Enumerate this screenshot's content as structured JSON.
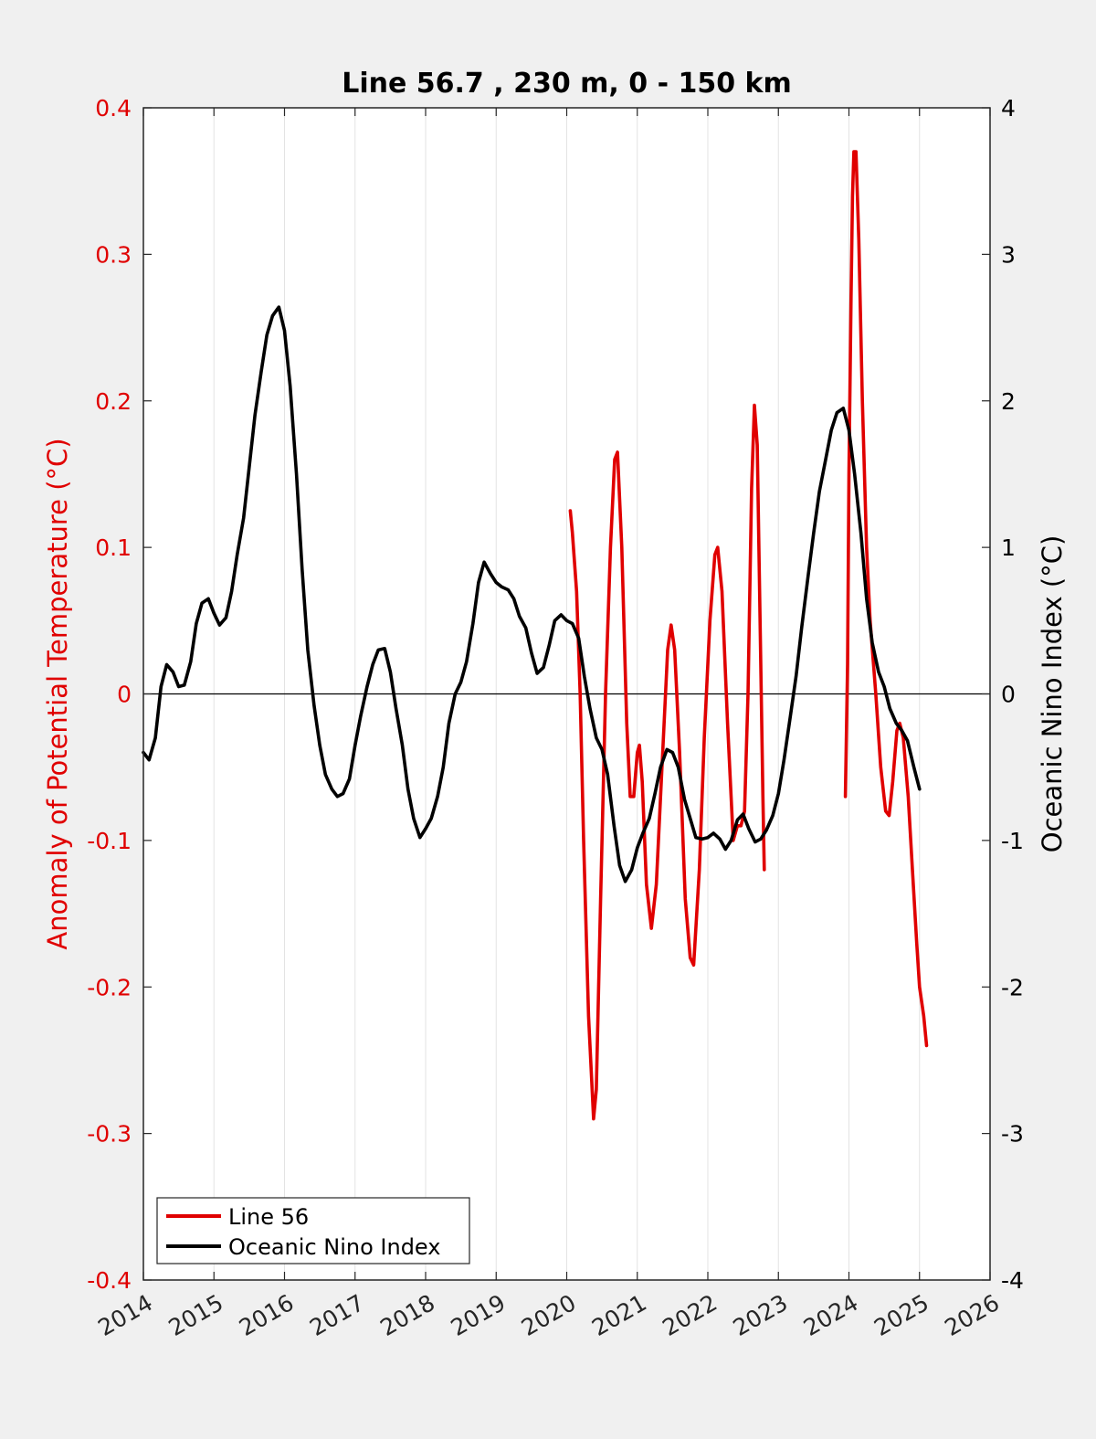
{
  "chart_data": {
    "type": "line",
    "title": "Line 56.7 , 230 m, 0 - 150 km",
    "xlim": [
      2014,
      2026
    ],
    "x_ticks": [
      "2014",
      "2015",
      "2016",
      "2017",
      "2018",
      "2019",
      "2020",
      "2021",
      "2022",
      "2023",
      "2024",
      "2025",
      "2026"
    ],
    "y_left": {
      "label": "Anomaly of Potential Temperature (°C)",
      "lim": [
        -0.4,
        0.4
      ],
      "ticks": [
        "-0.4",
        "-0.3",
        "-0.2",
        "-0.1",
        "0",
        "0.1",
        "0.2",
        "0.3",
        "0.4"
      ],
      "color": "#e00000"
    },
    "y_right": {
      "label": "Oceanic Nino Index (°C)",
      "lim": [
        -4,
        4
      ],
      "ticks": [
        "-4",
        "-3",
        "-2",
        "-1",
        "0",
        "1",
        "2",
        "3",
        "4"
      ],
      "color": "#000000"
    },
    "grid": "vertical",
    "legend_position": "bottom-left",
    "series": [
      {
        "name": "Line 56",
        "axis": "left",
        "color": "#e00000",
        "points": [
          [
            2020.05,
            0.125
          ],
          [
            2020.08,
            0.11
          ],
          [
            2020.14,
            0.07
          ],
          [
            2020.19,
            0.0
          ],
          [
            2020.24,
            -0.1
          ],
          [
            2020.31,
            -0.22
          ],
          [
            2020.38,
            -0.29
          ],
          [
            2020.42,
            -0.27
          ],
          [
            2020.48,
            -0.14
          ],
          [
            2020.55,
            0.0
          ],
          [
            2020.62,
            0.1
          ],
          [
            2020.68,
            0.16
          ],
          [
            2020.72,
            0.165
          ],
          [
            2020.78,
            0.1
          ],
          [
            2020.85,
            -0.02
          ],
          [
            2020.9,
            -0.07
          ],
          [
            2020.95,
            -0.07
          ],
          [
            2021.0,
            -0.04
          ],
          [
            2021.03,
            -0.035
          ],
          [
            2021.07,
            -0.06
          ],
          [
            2021.13,
            -0.13
          ],
          [
            2021.2,
            -0.16
          ],
          [
            2021.27,
            -0.13
          ],
          [
            2021.35,
            -0.05
          ],
          [
            2021.43,
            0.03
          ],
          [
            2021.48,
            0.047
          ],
          [
            2021.53,
            0.03
          ],
          [
            2021.6,
            -0.04
          ],
          [
            2021.68,
            -0.14
          ],
          [
            2021.75,
            -0.18
          ],
          [
            2021.8,
            -0.185
          ],
          [
            2021.88,
            -0.12
          ],
          [
            2021.95,
            -0.03
          ],
          [
            2022.03,
            0.05
          ],
          [
            2022.1,
            0.095
          ],
          [
            2022.14,
            0.1
          ],
          [
            2022.2,
            0.07
          ],
          [
            2022.28,
            -0.02
          ],
          [
            2022.36,
            -0.1
          ],
          [
            2022.42,
            -0.09
          ],
          [
            2022.47,
            -0.09
          ],
          [
            2022.52,
            -0.08
          ],
          [
            2022.57,
            0.0
          ],
          [
            2022.62,
            0.14
          ],
          [
            2022.66,
            0.197
          ],
          [
            2022.7,
            0.17
          ],
          [
            2022.74,
            0.05
          ],
          [
            2022.78,
            -0.07
          ],
          [
            2022.8,
            -0.12
          ]
        ],
        "segments": [
          [
            [
              2023.95,
              -0.07
            ],
            [
              2023.98,
              0.02
            ],
            [
              2024.0,
              0.15
            ],
            [
              2024.03,
              0.27
            ],
            [
              2024.05,
              0.34
            ],
            [
              2024.07,
              0.37
            ],
            [
              2024.1,
              0.37
            ],
            [
              2024.14,
              0.31
            ],
            [
              2024.19,
              0.2
            ],
            [
              2024.25,
              0.1
            ],
            [
              2024.3,
              0.05
            ],
            [
              2024.38,
              0.0
            ],
            [
              2024.45,
              -0.05
            ],
            [
              2024.52,
              -0.08
            ],
            [
              2024.57,
              -0.083
            ],
            [
              2024.62,
              -0.06
            ],
            [
              2024.68,
              -0.025
            ],
            [
              2024.72,
              -0.02
            ],
            [
              2024.77,
              -0.03
            ],
            [
              2024.84,
              -0.07
            ],
            [
              2024.9,
              -0.12
            ],
            [
              2024.96,
              -0.17
            ],
            [
              2025.0,
              -0.2
            ],
            [
              2025.06,
              -0.22
            ],
            [
              2025.1,
              -0.24
            ]
          ]
        ]
      },
      {
        "name": "Oceanic Nino Index",
        "axis": "right",
        "color": "#000000",
        "points": [
          [
            2014.0,
            -0.4
          ],
          [
            2014.08,
            -0.45
          ],
          [
            2014.17,
            -0.3
          ],
          [
            2014.25,
            0.05
          ],
          [
            2014.33,
            0.2
          ],
          [
            2014.42,
            0.15
          ],
          [
            2014.5,
            0.05
          ],
          [
            2014.58,
            0.06
          ],
          [
            2014.67,
            0.22
          ],
          [
            2014.75,
            0.48
          ],
          [
            2014.83,
            0.62
          ],
          [
            2014.92,
            0.65
          ],
          [
            2015.0,
            0.55
          ],
          [
            2015.08,
            0.47
          ],
          [
            2015.17,
            0.52
          ],
          [
            2015.25,
            0.7
          ],
          [
            2015.33,
            0.95
          ],
          [
            2015.42,
            1.2
          ],
          [
            2015.5,
            1.55
          ],
          [
            2015.58,
            1.9
          ],
          [
            2015.67,
            2.2
          ],
          [
            2015.75,
            2.45
          ],
          [
            2015.83,
            2.58
          ],
          [
            2015.92,
            2.64
          ],
          [
            2016.0,
            2.48
          ],
          [
            2016.08,
            2.1
          ],
          [
            2016.17,
            1.5
          ],
          [
            2016.25,
            0.85
          ],
          [
            2016.33,
            0.3
          ],
          [
            2016.42,
            -0.08
          ],
          [
            2016.5,
            -0.35
          ],
          [
            2016.58,
            -0.55
          ],
          [
            2016.67,
            -0.65
          ],
          [
            2016.75,
            -0.7
          ],
          [
            2016.83,
            -0.68
          ],
          [
            2016.92,
            -0.58
          ],
          [
            2017.0,
            -0.35
          ],
          [
            2017.08,
            -0.15
          ],
          [
            2017.17,
            0.05
          ],
          [
            2017.25,
            0.2
          ],
          [
            2017.33,
            0.3
          ],
          [
            2017.42,
            0.31
          ],
          [
            2017.5,
            0.15
          ],
          [
            2017.58,
            -0.1
          ],
          [
            2017.67,
            -0.35
          ],
          [
            2017.75,
            -0.65
          ],
          [
            2017.83,
            -0.85
          ],
          [
            2017.92,
            -0.98
          ],
          [
            2018.0,
            -0.92
          ],
          [
            2018.08,
            -0.85
          ],
          [
            2018.17,
            -0.7
          ],
          [
            2018.25,
            -0.5
          ],
          [
            2018.33,
            -0.2
          ],
          [
            2018.42,
            0.0
          ],
          [
            2018.5,
            0.08
          ],
          [
            2018.58,
            0.22
          ],
          [
            2018.67,
            0.48
          ],
          [
            2018.75,
            0.76
          ],
          [
            2018.83,
            0.9
          ],
          [
            2018.92,
            0.82
          ],
          [
            2019.0,
            0.76
          ],
          [
            2019.08,
            0.73
          ],
          [
            2019.17,
            0.71
          ],
          [
            2019.25,
            0.65
          ],
          [
            2019.33,
            0.53
          ],
          [
            2019.42,
            0.45
          ],
          [
            2019.5,
            0.28
          ],
          [
            2019.58,
            0.14
          ],
          [
            2019.67,
            0.18
          ],
          [
            2019.75,
            0.33
          ],
          [
            2019.83,
            0.5
          ],
          [
            2019.92,
            0.54
          ],
          [
            2020.0,
            0.5
          ],
          [
            2020.08,
            0.48
          ],
          [
            2020.17,
            0.38
          ],
          [
            2020.25,
            0.12
          ],
          [
            2020.33,
            -0.1
          ],
          [
            2020.42,
            -0.3
          ],
          [
            2020.5,
            -0.38
          ],
          [
            2020.58,
            -0.55
          ],
          [
            2020.67,
            -0.9
          ],
          [
            2020.75,
            -1.17
          ],
          [
            2020.83,
            -1.28
          ],
          [
            2020.92,
            -1.2
          ],
          [
            2021.0,
            -1.05
          ],
          [
            2021.08,
            -0.95
          ],
          [
            2021.17,
            -0.85
          ],
          [
            2021.25,
            -0.68
          ],
          [
            2021.33,
            -0.5
          ],
          [
            2021.42,
            -0.38
          ],
          [
            2021.5,
            -0.4
          ],
          [
            2021.58,
            -0.5
          ],
          [
            2021.67,
            -0.72
          ],
          [
            2021.75,
            -0.85
          ],
          [
            2021.83,
            -0.98
          ],
          [
            2021.92,
            -0.99
          ],
          [
            2022.0,
            -0.98
          ],
          [
            2022.08,
            -0.95
          ],
          [
            2022.17,
            -0.99
          ],
          [
            2022.25,
            -1.06
          ],
          [
            2022.33,
            -1.0
          ],
          [
            2022.42,
            -0.86
          ],
          [
            2022.5,
            -0.82
          ],
          [
            2022.58,
            -0.92
          ],
          [
            2022.67,
            -1.01
          ],
          [
            2022.75,
            -0.99
          ],
          [
            2022.83,
            -0.93
          ],
          [
            2022.92,
            -0.83
          ],
          [
            2023.0,
            -0.68
          ],
          [
            2023.08,
            -0.45
          ],
          [
            2023.17,
            -0.15
          ],
          [
            2023.25,
            0.12
          ],
          [
            2023.33,
            0.45
          ],
          [
            2023.42,
            0.8
          ],
          [
            2023.5,
            1.1
          ],
          [
            2023.58,
            1.38
          ],
          [
            2023.67,
            1.6
          ],
          [
            2023.75,
            1.8
          ],
          [
            2023.83,
            1.92
          ],
          [
            2023.92,
            1.95
          ],
          [
            2024.0,
            1.8
          ],
          [
            2024.08,
            1.5
          ],
          [
            2024.17,
            1.1
          ],
          [
            2024.25,
            0.65
          ],
          [
            2024.33,
            0.35
          ],
          [
            2024.42,
            0.15
          ],
          [
            2024.5,
            0.05
          ],
          [
            2024.58,
            -0.1
          ],
          [
            2024.67,
            -0.2
          ],
          [
            2024.75,
            -0.25
          ],
          [
            2024.83,
            -0.32
          ],
          [
            2024.92,
            -0.5
          ],
          [
            2025.0,
            -0.65
          ]
        ]
      }
    ]
  }
}
